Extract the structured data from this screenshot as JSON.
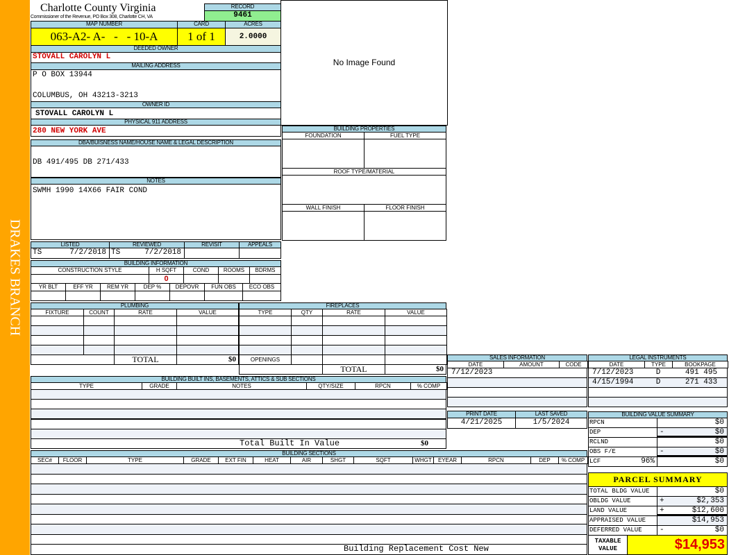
{
  "side_label": "DRAKES BRANCH",
  "header": {
    "title": "Charlotte County Virginia",
    "subtitle": "Commissioner of the Revenue, PO Box 308, Charlotte CH, VA"
  },
  "record": {
    "label": "RECORD",
    "value": "9461"
  },
  "map": {
    "label": "MAP NUMBER",
    "value": "063-A2- A-   -   - 10-A",
    "card_label": "CARD",
    "card": "1 of 1",
    "acres_label": "ACRES",
    "acres": "2.0000"
  },
  "owner": {
    "deeded_label": "DEEDED OWNER",
    "deeded": "STOVALL CAROLYN L",
    "mailing_label": "MAILING ADDRESS",
    "mailing1": "P O BOX 13944",
    "mailing2": "COLUMBUS, OH 43213-3213",
    "id_label": "OWNER ID",
    "id": "STOVALL CAROLYN L",
    "addr_label": "PHYSICAL 911 ADDRESS",
    "addr": "280 NEW YORK AVE"
  },
  "image": {
    "text": "No Image Found"
  },
  "dba": {
    "label": "DBA/BUISNESS NAME/HOUSE NAME & LEGAL DESCRIPTION",
    "value": "DB 491/495 DB 271/433"
  },
  "notes": {
    "label": "NOTES",
    "value": "SWMH 1990 14X66 FAIR COND"
  },
  "props": {
    "label": "BUILDING PROPERTIES",
    "foundation": "FOUNDATION",
    "fuel": "FUEL TYPE",
    "roof": "ROOF TYPE/MATERIAL",
    "wall": "WALL FINISH",
    "floor": "FLOOR FINISH"
  },
  "review": {
    "listed_label": "LISTED",
    "listed_by": "TS",
    "listed": "7/2/2018",
    "reviewed_label": "REVIEWED",
    "reviewed_by": "TS",
    "reviewed": "7/2/2018",
    "revisit_label": "REVISIT",
    "appeals_label": "APPEALS"
  },
  "bldg_info": {
    "label": "BUILDING INFORMATION",
    "cols1": [
      "CONSTRUCTION STYLE",
      "H SQFT",
      "COND",
      "ROOMS",
      "BDRMS"
    ],
    "hsqft": "0",
    "cols2": [
      "YR BLT",
      "EFF YR",
      "REM YR",
      "DEP %",
      "DEPOVR",
      "FUN OBS",
      "ECO OBS"
    ]
  },
  "plumbing": {
    "label": "PLUMBING",
    "cols": [
      "FIXTURE",
      "COUNT",
      "RATE",
      "VALUE"
    ],
    "total_label": "TOTAL",
    "total": "$0"
  },
  "fireplaces": {
    "label": "FIREPLACES",
    "cols": [
      "TYPE",
      "QTY",
      "RATE",
      "VALUE"
    ],
    "openings_label": "OPENINGS",
    "total_label": "TOTAL",
    "total": "$0"
  },
  "builtins": {
    "label": "BUILDING BUILT INS, BASEMENTS, ATTICS & SUB SECTIONS",
    "cols": [
      "TYPE",
      "GRADE",
      "NOTES",
      "QTY/SIZE",
      "RPCN",
      "% COMP"
    ],
    "total_label": "Total Built In Value",
    "total": "$0"
  },
  "sections": {
    "label": "BUILDING SECTIONS",
    "cols": [
      "SEC#",
      "FLOOR",
      "TYPE",
      "GRADE",
      "EXT FIN",
      "HEAT",
      "AIR",
      "SHGT",
      "SQFT",
      "WHGT",
      "EYEAR",
      "RPCN",
      "DEP",
      "% COMP"
    ],
    "total_label": "Building Replacement Cost New"
  },
  "sales": {
    "label": "SALES INFORMATION",
    "cols": [
      "DATE",
      "AMOUNT",
      "CODE"
    ],
    "rows": [
      [
        "7/12/2023",
        "",
        ""
      ]
    ]
  },
  "legal": {
    "label": "LEGAL INSTRUMENTS",
    "cols": [
      "DATE",
      "TYPE",
      "BOOKPAGE"
    ],
    "rows": [
      [
        "7/12/2023",
        "D",
        "491 495"
      ],
      [
        "4/15/1994",
        "D",
        "271 433"
      ]
    ]
  },
  "dates": {
    "print_label": "PRINT DATE",
    "print": "4/21/2025",
    "saved_label": "LAST SAVED",
    "saved": "1/5/2024"
  },
  "bvs": {
    "label": "BUILDING VALUE SUMMARY",
    "rows": [
      {
        "label": "RPCN",
        "sign": "",
        "value": "$0"
      },
      {
        "label": "DEP",
        "sign": "-",
        "value": "$0"
      },
      {
        "label": "RCLND",
        "sign": "",
        "value": "$0"
      },
      {
        "label": "OBS F/E",
        "sign": "-",
        "value": "$0"
      },
      {
        "label": "LCF",
        "pct": "96%",
        "sign": "",
        "value": "$0"
      }
    ]
  },
  "parcel": {
    "label": "PARCEL SUMMARY",
    "rows": [
      {
        "label": "TOTAL BLDG VALUE",
        "sign": "",
        "value": "$0"
      },
      {
        "label": "OBLDG VALUE",
        "sign": "+",
        "value": "$2,353"
      },
      {
        "label": "LAND VALUE",
        "sign": "+",
        "value": "$12,600"
      },
      {
        "label": "APPRAISED VALUE",
        "sign": "",
        "value": "$14,953"
      },
      {
        "label": "DEFERRED VALUE",
        "sign": "-",
        "value": "$0"
      }
    ],
    "taxable_label": "TAXABLE VALUE",
    "taxable": "$14,953"
  },
  "colors": {
    "sidebar": "#ffa500",
    "header": "#add8e6",
    "record": "#90ee90",
    "highlight": "#ffff00",
    "owner_text": "#d00000"
  }
}
